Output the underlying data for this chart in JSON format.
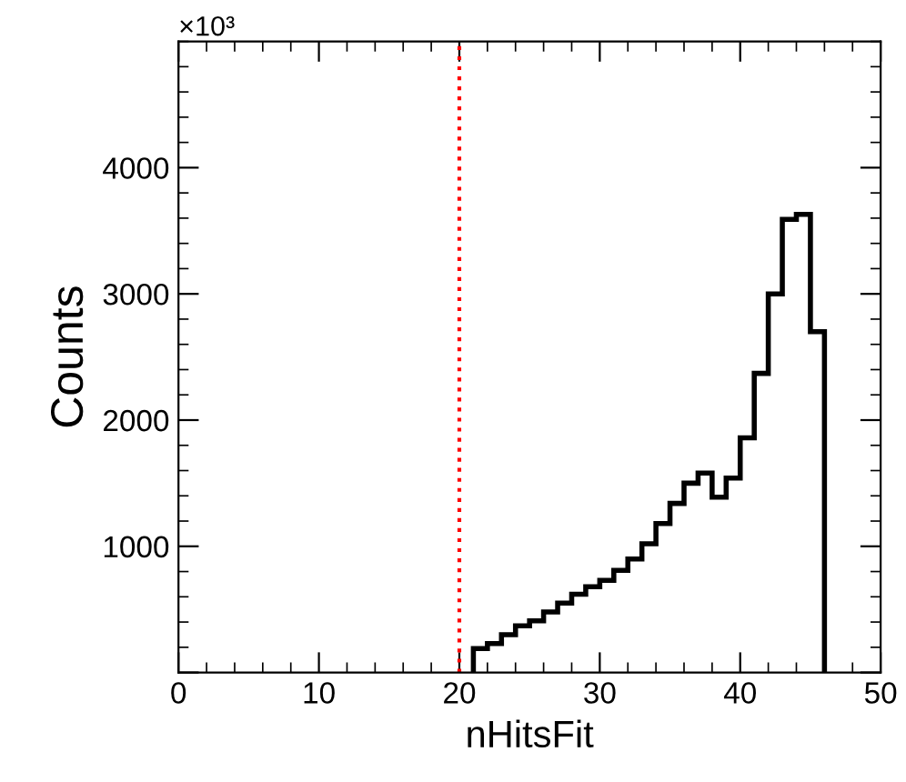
{
  "chart_data": {
    "type": "histogram",
    "xlabel": "nHitsFit",
    "ylabel": "Counts",
    "bins": [
      21,
      22,
      23,
      24,
      25,
      26,
      27,
      28,
      29,
      30,
      31,
      32,
      33,
      34,
      35,
      36,
      37,
      38,
      39,
      40,
      41,
      42,
      43,
      44,
      45,
      46
    ],
    "values": [
      190,
      230,
      300,
      370,
      410,
      480,
      550,
      620,
      680,
      730,
      810,
      900,
      1020,
      1180,
      1340,
      1500,
      1580,
      1390,
      1540,
      1860,
      2370,
      3000,
      3590,
      3630,
      2700
    ],
    "color": "#000000",
    "xlim": [
      0,
      50
    ],
    "xticks": [
      0,
      10,
      20,
      30,
      40,
      50
    ],
    "ylim": [
      0,
      5000
    ],
    "yticks": [
      {
        "value": 0,
        "label": null
      },
      1000,
      2000,
      3000,
      4000
    ],
    "ref_lines": [
      {
        "axis": "x",
        "value": 20,
        "color": "#ff0000",
        "line_style": "dotted"
      }
    ],
    "annotations": [
      "×10³"
    ],
    "grid": false,
    "legend": false
  }
}
